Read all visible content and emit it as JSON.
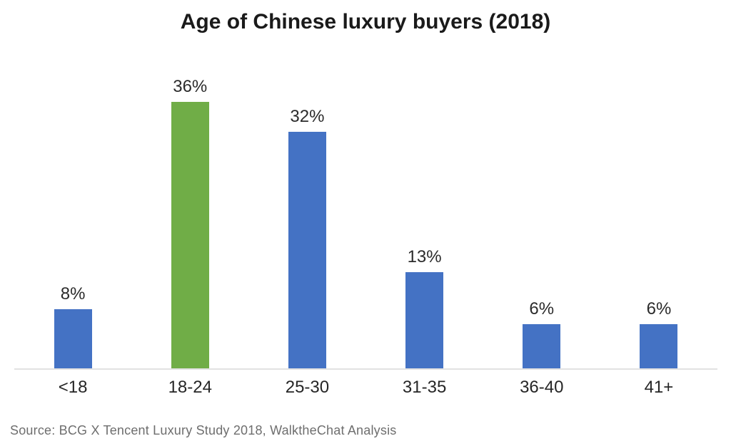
{
  "title": "Age of Chinese luxury buyers (2018)",
  "source_note": "Source: BCG X Tencent Luxury Study 2018, WalktheChat Analysis",
  "colors": {
    "default_bar": "#4472C4",
    "highlight_bar": "#70AD47",
    "axis_line": "#E2E2E2",
    "label_text": "#2B2B2B",
    "source_text": "#6E6E6E"
  },
  "chart_data": {
    "type": "bar",
    "title": "Age of Chinese luxury buyers (2018)",
    "categories": [
      "<18",
      "18-24",
      "25-30",
      "31-35",
      "36-40",
      "41+"
    ],
    "values": [
      8,
      36,
      32,
      13,
      6,
      6
    ],
    "data_labels": [
      "8%",
      "36%",
      "32%",
      "13%",
      "6%",
      "6%"
    ],
    "unit": "%",
    "bar_colors": [
      "#4472C4",
      "#70AD47",
      "#4472C4",
      "#4472C4",
      "#4472C4",
      "#4472C4"
    ],
    "highlighted_category": "18-24",
    "xlabel": "",
    "ylabel": "",
    "ylim": [
      0,
      41
    ],
    "grid": false,
    "legend_position": "none",
    "annotation": "Source: BCG X Tencent Luxury Study 2018, WalktheChat Analysis"
  }
}
